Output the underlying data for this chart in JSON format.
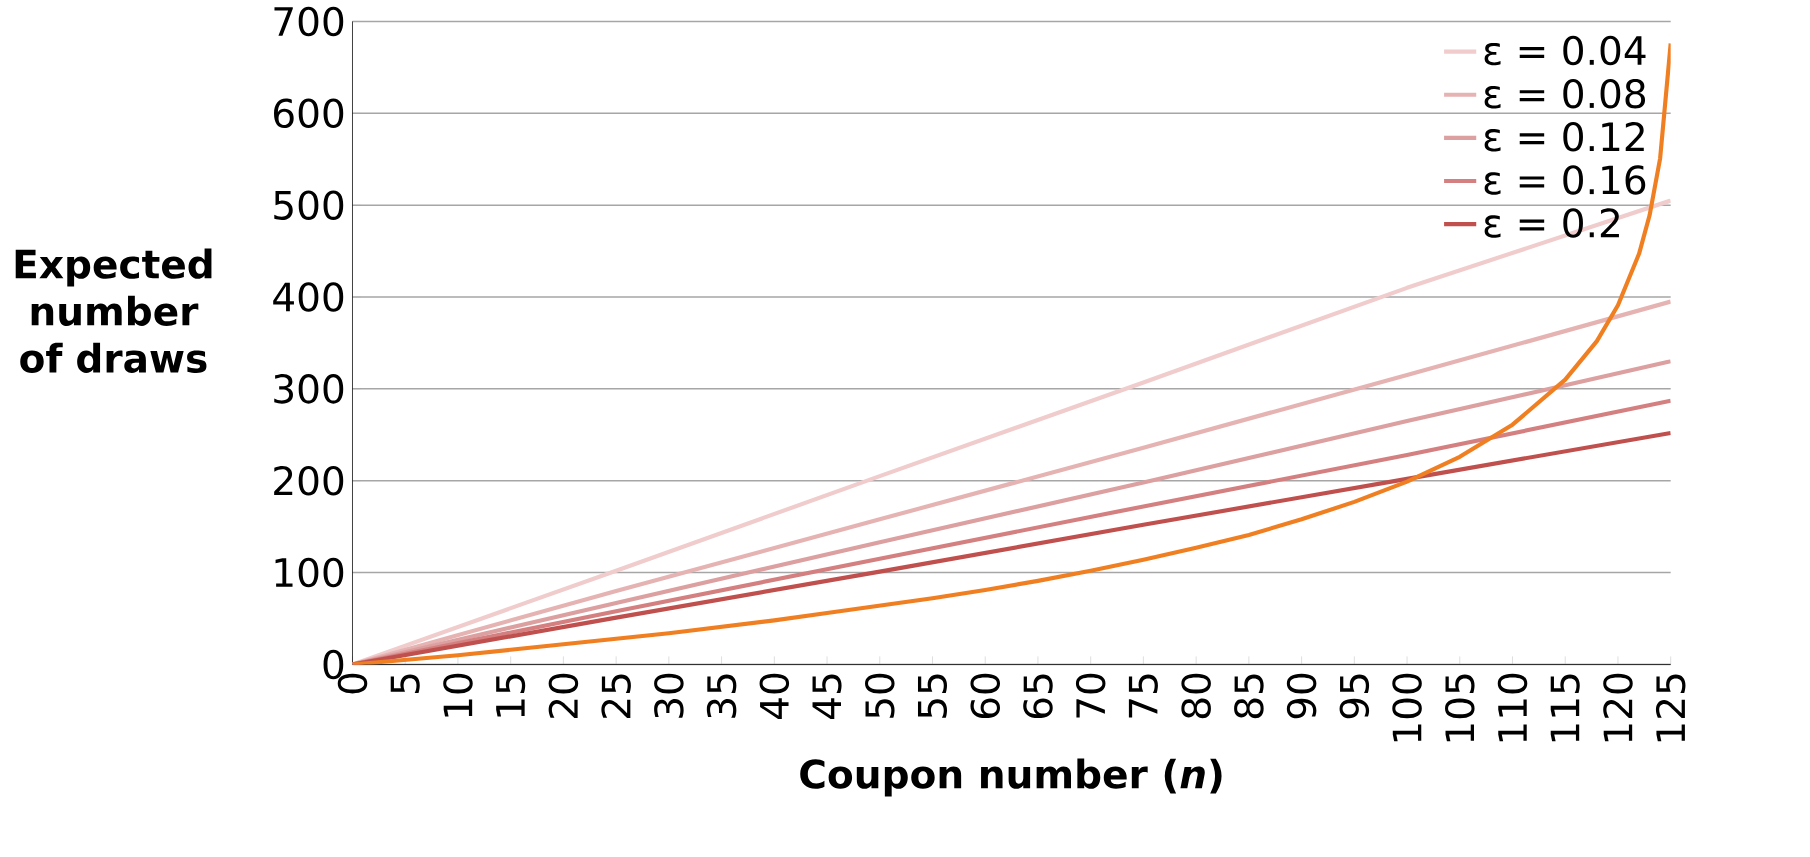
{
  "chart_data": {
    "type": "line",
    "xlabel": "Coupon number (*n*)",
    "ylabel": "Expected number of draws",
    "xlim": [
      0,
      125
    ],
    "ylim": [
      0,
      700
    ],
    "xticks": [
      0,
      5,
      10,
      15,
      20,
      25,
      30,
      35,
      40,
      45,
      50,
      55,
      60,
      65,
      70,
      75,
      80,
      85,
      90,
      95,
      100,
      105,
      110,
      115,
      120,
      125
    ],
    "yticks": [
      0,
      100,
      200,
      300,
      400,
      500,
      600,
      700
    ],
    "grid": "y",
    "legend": "top right",
    "marker": "none",
    "line_style": "solid",
    "series": [
      {
        "name": "ε = 0.04",
        "color": "#f0cccc",
        "x": [
          0,
          25,
          50,
          75,
          100,
          125
        ],
        "values": [
          0,
          102,
          205,
          307,
          410,
          505
        ]
      },
      {
        "name": "ε = 0.08",
        "color": "#e6b3b3",
        "x": [
          0,
          25,
          50,
          75,
          100,
          125
        ],
        "values": [
          0,
          80,
          158,
          236,
          315,
          395
        ]
      },
      {
        "name": "ε = 0.12",
        "color": "#dca0a0",
        "x": [
          0,
          25,
          50,
          75,
          100,
          125
        ],
        "values": [
          0,
          67,
          133,
          198,
          265,
          330
        ]
      },
      {
        "name": "ε = 0.16",
        "color": "#d48080",
        "x": [
          0,
          25,
          50,
          75,
          100,
          125
        ],
        "values": [
          0,
          58,
          115,
          172,
          228,
          287
        ]
      },
      {
        "name": "ε = 0.2",
        "color": "#c0504d",
        "x": [
          0,
          25,
          50,
          75,
          100,
          125
        ],
        "values": [
          0,
          51,
          101,
          152,
          202,
          252
        ]
      },
      {
        "color": "#f07f22",
        "x": [
          0,
          5,
          10,
          15,
          20,
          25,
          30,
          35,
          40,
          45,
          50,
          55,
          60,
          65,
          70,
          75,
          80,
          85,
          90,
          95,
          100,
          105,
          110,
          115,
          118,
          120,
          122,
          123,
          124,
          125
        ],
        "values": [
          0,
          5,
          10,
          16,
          22,
          28,
          34,
          41,
          48,
          56,
          64,
          72,
          81,
          91,
          102,
          114,
          127,
          141,
          158,
          177,
          199,
          226,
          261,
          310,
          352,
          391,
          447,
          489,
          551,
          676
        ]
      }
    ]
  }
}
